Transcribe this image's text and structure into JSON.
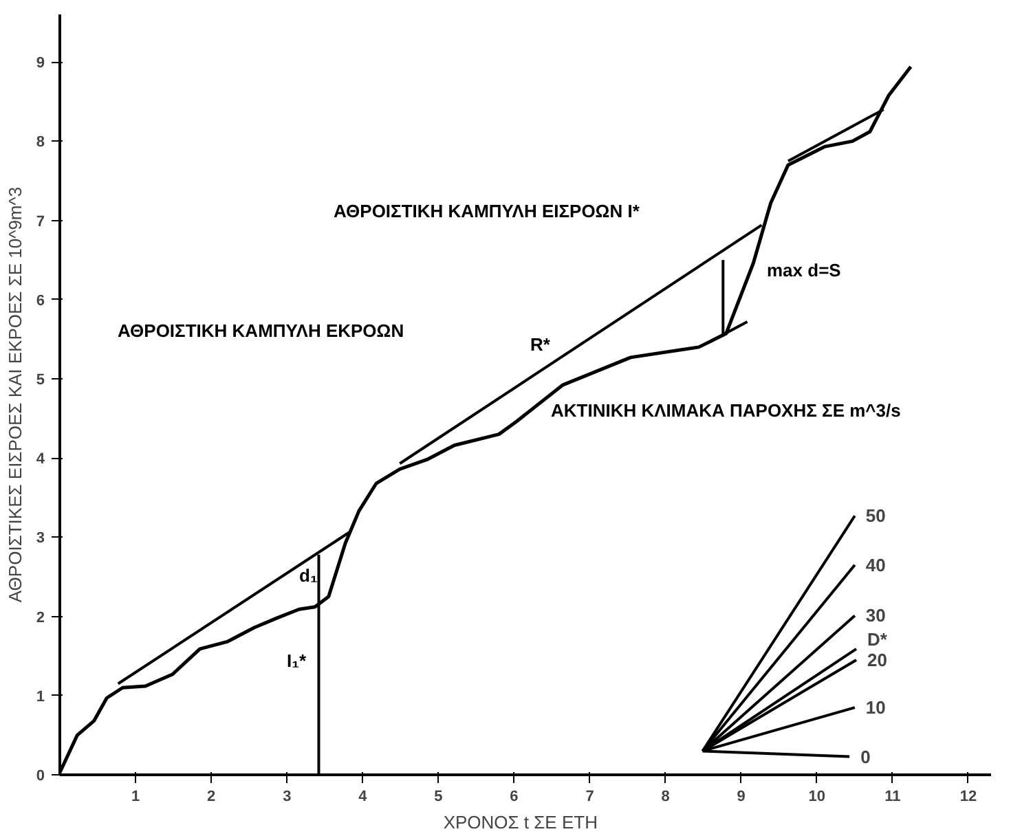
{
  "chart_data": {
    "type": "line",
    "xlabel": "ΧΡΟΝΟΣ  t  ΣΕ ΕΤΗ",
    "ylabel": "ΑΘΡΟΙΣΤΙΚΕΣ ΕΙΣΡΟΕΣ ΚΑΙ ΕΚΡΟΕΣ ΣΕ 10^9m^3",
    "xlim": [
      0,
      12.3
    ],
    "ylim": [
      0,
      9.6
    ],
    "xticks": [
      1,
      2,
      3,
      4,
      5,
      6,
      7,
      8,
      9,
      10,
      11,
      12
    ],
    "yticks": [
      0,
      1,
      2,
      3,
      4,
      5,
      6,
      7,
      8,
      9
    ],
    "grid": false,
    "legend": false,
    "marker": "none",
    "line_style": "solid",
    "series": [
      {
        "color": "#000000",
        "x": [
          0.0,
          0.23,
          0.45,
          0.62,
          0.83,
          1.13,
          1.49,
          1.85,
          2.21,
          2.57,
          2.87,
          3.16,
          3.37,
          3.55,
          3.77,
          3.95,
          4.18,
          4.49,
          4.85,
          5.21,
          5.8,
          6.03,
          6.64,
          7.54,
          8.44,
          8.8,
          9.16,
          9.39,
          9.62,
          10.1,
          10.47,
          10.7,
          10.95,
          11.24
        ],
        "values": [
          0.03,
          0.5,
          0.68,
          0.97,
          1.1,
          1.12,
          1.27,
          1.59,
          1.68,
          1.86,
          1.98,
          2.09,
          2.12,
          2.25,
          2.92,
          3.33,
          3.68,
          3.86,
          3.98,
          4.16,
          4.3,
          4.46,
          4.92,
          5.27,
          5.4,
          5.57,
          6.46,
          7.22,
          7.7,
          7.93,
          8.0,
          8.12,
          8.58,
          8.94
        ]
      },
      {
        "color": "#000000",
        "x": [
          0.77,
          3.82
        ],
        "values": [
          1.15,
          3.06
        ]
      },
      {
        "color": "#000000",
        "x": [
          4.49,
          9.27
        ],
        "values": [
          3.93,
          6.94
        ]
      },
      {
        "color": "#000000",
        "x": [
          9.62,
          10.88
        ],
        "values": [
          7.75,
          8.4
        ]
      },
      {
        "color": "#000000",
        "x": [
          3.42,
          3.42
        ],
        "values": [
          0,
          2.78
        ]
      },
      {
        "color": "#000000",
        "x": [
          8.76,
          8.76
        ],
        "values": [
          5.57,
          6.5
        ]
      },
      {
        "color": "#000000",
        "x": [
          8.55,
          9.08
        ],
        "values": [
          5.45,
          5.72
        ]
      },
      {
        "name": "0",
        "color": "#000000",
        "x": [
          8.49,
          10.43
        ],
        "values": [
          0.3,
          0.23
        ]
      },
      {
        "name": "10",
        "color": "#000000",
        "x": [
          8.49,
          10.5
        ],
        "values": [
          0.3,
          0.85
        ]
      },
      {
        "name": "20",
        "color": "#000000",
        "x": [
          8.49,
          10.52
        ],
        "values": [
          0.3,
          1.45
        ]
      },
      {
        "name": "D*",
        "color": "#000000",
        "x": [
          8.49,
          10.52
        ],
        "values": [
          0.3,
          1.59
        ]
      },
      {
        "name": "30",
        "color": "#000000",
        "x": [
          8.49,
          10.5
        ],
        "values": [
          0.3,
          2.01
        ]
      },
      {
        "name": "40",
        "color": "#000000",
        "x": [
          8.49,
          10.5
        ],
        "values": [
          0.3,
          2.65
        ]
      },
      {
        "name": "50",
        "color": "#000000",
        "x": [
          8.49,
          10.5
        ],
        "values": [
          0.3,
          3.27
        ]
      }
    ],
    "annotations": [
      "ΑΘΡΟΙΣΤΙΚΗ ΚΑΜΠΥΛΗ ΕΙΣΡΟΩΝ I*",
      "ΑΘΡΟΙΣΤΙΚΗ ΚΑΜΠΥΛΗ ΕΚΡΟΩΝ",
      "R*",
      "max d=S",
      "d₁",
      "I₁*",
      "ΑΚΤΙΝΙΚΗ ΚΛΙΜΑΚΑ ΠΑΡΟΧΗΣ ΣΕ  m^3/s"
    ]
  }
}
